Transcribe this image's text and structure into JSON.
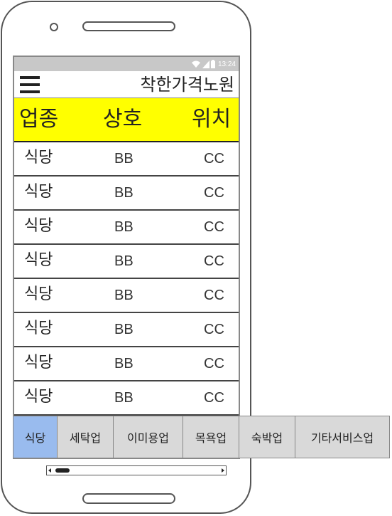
{
  "status_bar": {
    "time": "13:24",
    "icons": [
      "wifi-icon",
      "signal-icon",
      "battery-icon"
    ]
  },
  "app_bar": {
    "title": "착한가격노원",
    "menu_icon": "hamburger-menu-icon"
  },
  "table": {
    "headers": [
      "업종",
      "상호",
      "위치"
    ],
    "header_color": "#ffff00",
    "rows": [
      [
        "식당",
        "BB",
        "CC"
      ],
      [
        "식당",
        "BB",
        "CC"
      ],
      [
        "식당",
        "BB",
        "CC"
      ],
      [
        "식당",
        "BB",
        "CC"
      ],
      [
        "식당",
        "BB",
        "CC"
      ],
      [
        "식당",
        "BB",
        "CC"
      ],
      [
        "식당",
        "BB",
        "CC"
      ],
      [
        "식당",
        "BB",
        "CC"
      ]
    ]
  },
  "tabs": [
    {
      "label": "식당",
      "active": true
    },
    {
      "label": "세탁업",
      "active": false
    },
    {
      "label": "이미용업",
      "active": false
    },
    {
      "label": "목욕업",
      "active": false
    },
    {
      "label": "숙박업",
      "active": false
    },
    {
      "label": "기타서비스업",
      "active": false
    }
  ],
  "colors": {
    "active_tab": "#99bbee",
    "inactive_tab": "#d9d9d9",
    "status_bar": "#c8c8c8"
  }
}
